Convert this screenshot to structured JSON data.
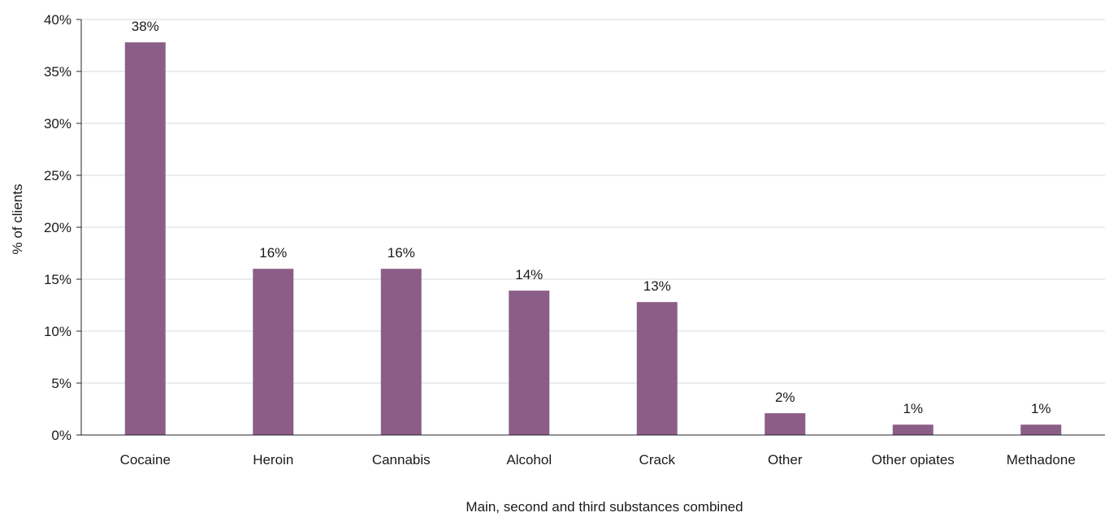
{
  "chart_data": {
    "type": "bar",
    "categories": [
      "Cocaine",
      "Heroin",
      "Cannabis",
      "Alcohol",
      "Crack",
      "Other",
      "Other opiates",
      "Methadone"
    ],
    "values": [
      37.8,
      16.0,
      16.0,
      13.9,
      12.8,
      2.1,
      1.0,
      1.0
    ],
    "data_labels": [
      "38%",
      "16%",
      "16%",
      "14%",
      "13%",
      "2%",
      "1%",
      "1%"
    ],
    "title": "",
    "xlabel": "Main, second and third substances combined",
    "ylabel": "% of clients",
    "ylim": [
      0,
      40
    ],
    "yticks": [
      0,
      5,
      10,
      15,
      20,
      25,
      30,
      35,
      40
    ],
    "ytick_labels": [
      "0%",
      "5%",
      "10%",
      "15%",
      "20%",
      "25%",
      "30%",
      "35%",
      "40%"
    ],
    "grid": true,
    "legend": "none",
    "bar_color": "#8b5e88",
    "grid_color": "#d9d9d9",
    "axis_color": "#262626"
  }
}
